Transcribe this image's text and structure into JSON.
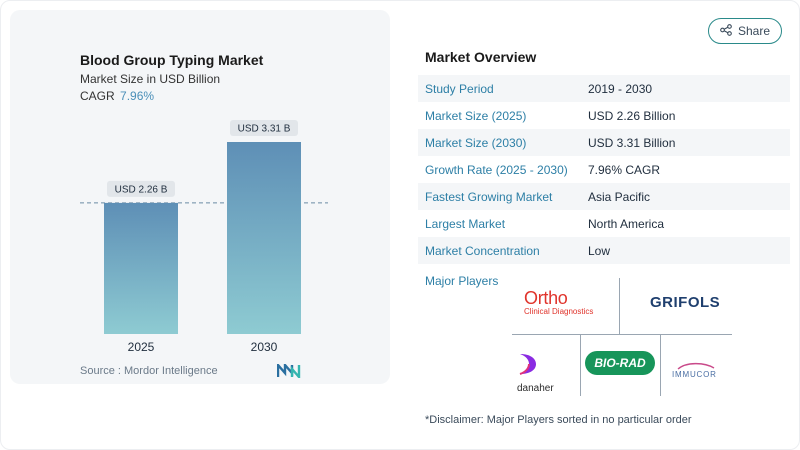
{
  "chart_data": {
    "type": "bar",
    "title": "Blood Group Typing Market",
    "subtitle": "Market Size in USD Billion",
    "cagr_label": "CAGR",
    "cagr_value": "7.96%",
    "categories": [
      "2025",
      "2030"
    ],
    "values": [
      2.26,
      3.31
    ],
    "data_labels": [
      "USD 2.26 B",
      "USD 3.31 B"
    ],
    "colors": {
      "bar_top": "#5e8fb6",
      "bar_bottom": "#8ecbd2",
      "dashed": "#6b8ba4"
    }
  },
  "source": "Source :  Mordor Intelligence",
  "share": {
    "label": "Share",
    "icon": "share-icon"
  },
  "overview": {
    "title": "Market Overview",
    "rows": [
      {
        "label": "Study Period",
        "value": "2019 - 2030"
      },
      {
        "label": "Market Size (2025)",
        "value": "USD 2.26 Billion"
      },
      {
        "label": "Market Size (2030)",
        "value": "USD 3.31 Billion"
      },
      {
        "label": "Growth Rate (2025 - 2030)",
        "value": "7.96% CAGR"
      },
      {
        "label": "Fastest Growing Market",
        "value": "Asia Pacific"
      },
      {
        "label": "Largest Market",
        "value": "North America"
      },
      {
        "label": "Market Concentration",
        "value": "Low"
      }
    ]
  },
  "players": {
    "label": "Major Players",
    "ortho": {
      "main": "Ortho",
      "sub": "Clinical Diagnostics"
    },
    "grifols": "GRIFOLS",
    "biorad": "BIO-RAD",
    "danaher": "danaher",
    "immucor": "IMMUCOR"
  },
  "disclaimer": "*Disclaimer: Major Players sorted in no particular order"
}
